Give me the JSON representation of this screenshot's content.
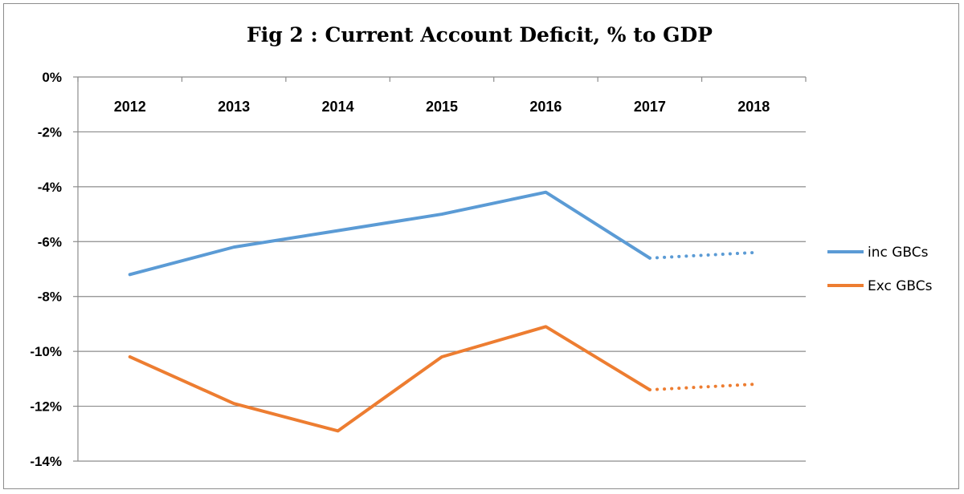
{
  "chart_data": {
    "type": "line",
    "title": "Fig 2 : Current Account Deficit, % to GDP",
    "xlabel": "",
    "ylabel": "",
    "categories": [
      "2012",
      "2013",
      "2014",
      "2015",
      "2016",
      "2017",
      "2018"
    ],
    "ylim": [
      -14,
      0
    ],
    "yticks": [
      0,
      -2,
      -4,
      -6,
      -8,
      -10,
      -12,
      -14
    ],
    "ytick_labels": [
      "0%",
      "-2%",
      "-4%",
      "-6%",
      "-8%",
      "-10%",
      "-12%",
      "-14%"
    ],
    "x_axis_position": "top",
    "grid": true,
    "legend": "right",
    "series": [
      {
        "name": "inc GBCs",
        "color": "#5b9bd5",
        "values": [
          -7.2,
          -6.2,
          -5.6,
          -5.0,
          -4.2,
          -6.6,
          -6.4
        ],
        "projected_from_index": 5
      },
      {
        "name": "Exc GBCs",
        "color": "#ed7d31",
        "values": [
          -10.2,
          -11.9,
          -12.9,
          -10.2,
          -9.1,
          -11.4,
          -11.2
        ],
        "projected_from_index": 5
      }
    ]
  }
}
